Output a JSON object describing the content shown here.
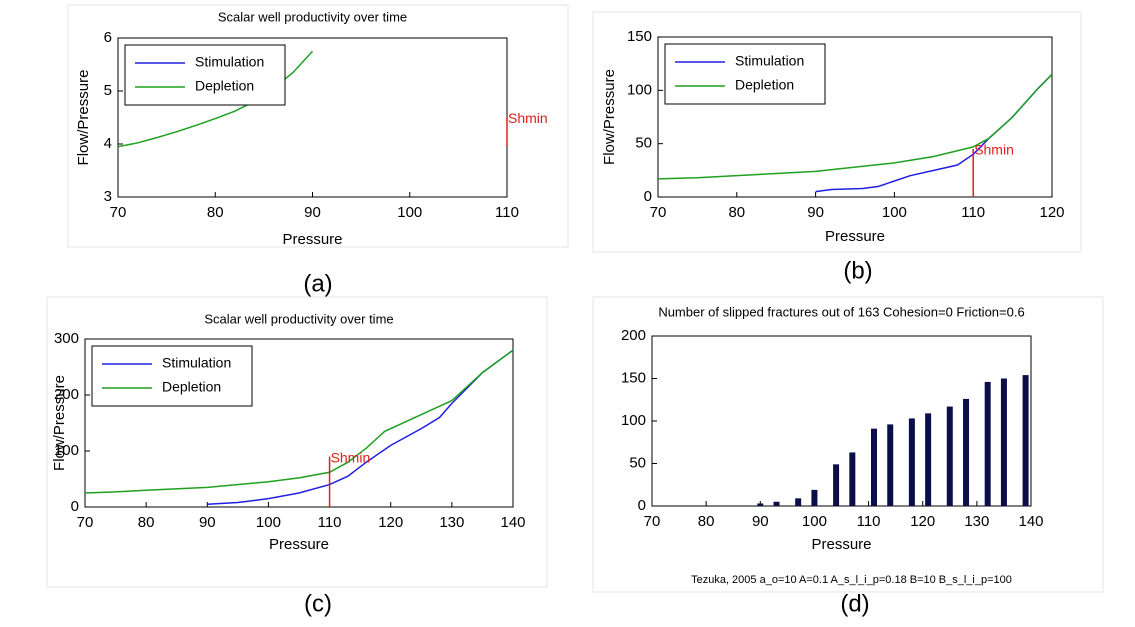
{
  "chart_data": [
    {
      "type": "line",
      "title": "Scalar well productivity over time",
      "xlabel": "Pressure",
      "ylabel": "Flow/Pressure",
      "xlim": [
        70,
        110
      ],
      "ylim": [
        3,
        6
      ],
      "xticks": [
        70,
        80,
        90,
        100,
        110
      ],
      "yticks": [
        3,
        4,
        5,
        6
      ],
      "legend": "upper left",
      "series": [
        {
          "name": "Stimulation",
          "color": "#2020e0",
          "x": [],
          "values": []
        },
        {
          "name": "Depletion",
          "color": "#20a020",
          "x": [
            70,
            72,
            74,
            76,
            78,
            80,
            82,
            84,
            86,
            88,
            90
          ],
          "values": [
            3.95,
            4.02,
            4.12,
            4.23,
            4.35,
            4.48,
            4.62,
            4.8,
            5.05,
            5.35,
            5.75
          ]
        }
      ],
      "annotation": {
        "label": "Shmin",
        "color": "#e02020",
        "x": 110,
        "y_range": [
          3.95,
          4.5
        ]
      },
      "caption": "(a)"
    },
    {
      "type": "line",
      "xlabel": "Pressure",
      "ylabel": "Flow/Pressure",
      "xlim": [
        70,
        120
      ],
      "ylim": [
        0,
        150
      ],
      "xticks": [
        70,
        80,
        90,
        100,
        110,
        120
      ],
      "yticks": [
        0,
        50,
        100,
        150
      ],
      "legend": "upper left",
      "series": [
        {
          "name": "Stimulation",
          "color": "#2020e0",
          "x": [
            90,
            92,
            96,
            98,
            100,
            102,
            105,
            108,
            110,
            112,
            115,
            118,
            120
          ],
          "values": [
            5,
            7,
            8,
            10,
            15,
            20,
            25,
            30,
            40,
            55,
            75,
            100,
            115
          ]
        },
        {
          "name": "Depletion",
          "color": "#20a020",
          "x": [
            70,
            75,
            80,
            85,
            90,
            95,
            100,
            105,
            110,
            112,
            115,
            118,
            120
          ],
          "values": [
            17,
            18,
            20,
            22,
            24,
            28,
            32,
            38,
            47,
            55,
            75,
            100,
            115
          ]
        }
      ],
      "annotation": {
        "label": "Shmin",
        "color": "#e02020",
        "x": 110,
        "y_range": [
          0,
          45
        ]
      },
      "caption": "(b)"
    },
    {
      "type": "line",
      "title": "Scalar well productivity over time",
      "xlabel": "Pressure",
      "ylabel": "Flow/Pressure",
      "xlim": [
        70,
        140
      ],
      "ylim": [
        0,
        300
      ],
      "xticks": [
        70,
        80,
        90,
        100,
        110,
        120,
        130,
        140
      ],
      "yticks": [
        0,
        100,
        200,
        300
      ],
      "legend": "upper left",
      "series": [
        {
          "name": "Stimulation",
          "color": "#2020e0",
          "x": [
            90,
            95,
            100,
            105,
            110,
            113,
            116,
            120,
            125,
            128,
            130,
            135,
            140
          ],
          "values": [
            5,
            8,
            15,
            25,
            40,
            55,
            80,
            110,
            140,
            160,
            185,
            240,
            280
          ]
        },
        {
          "name": "Depletion",
          "color": "#20a020",
          "x": [
            70,
            75,
            80,
            90,
            100,
            105,
            110,
            113,
            116,
            119,
            125,
            128,
            130,
            135,
            140
          ],
          "values": [
            25,
            27,
            30,
            35,
            45,
            52,
            62,
            80,
            105,
            135,
            165,
            180,
            190,
            240,
            280
          ]
        }
      ],
      "annotation": {
        "label": "Shmin",
        "color": "#e02020",
        "x": 110,
        "y_range": [
          0,
          90
        ]
      },
      "caption": "(c)"
    },
    {
      "type": "bar",
      "title": "Number of slipped fractures out of 163 Cohesion=0 Friction=0.6",
      "xlabel": "Pressure",
      "xlim": [
        70,
        140
      ],
      "ylim": [
        0,
        200
      ],
      "xticks": [
        70,
        80,
        90,
        100,
        110,
        120,
        130,
        140
      ],
      "yticks": [
        0,
        50,
        100,
        150,
        200
      ],
      "color": "#0a0f4a",
      "x": [
        90,
        93,
        97,
        100,
        104,
        107,
        111,
        114,
        118,
        121,
        125,
        128,
        132,
        135,
        139
      ],
      "values": [
        3,
        5,
        9,
        19,
        49,
        63,
        91,
        96,
        103,
        109,
        117,
        126,
        146,
        150,
        154
      ],
      "footnote": "Tezuka, 2005 a_o=10 A=0.1 A_s_l_i_p=0.18 B=10 B_s_l_i_p=100",
      "caption": "(d)"
    }
  ]
}
